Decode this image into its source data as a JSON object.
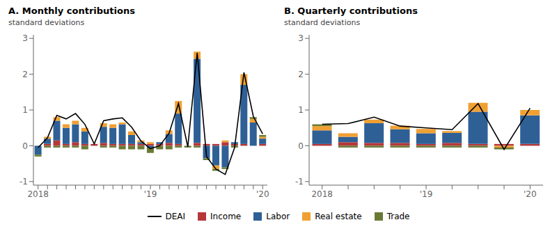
{
  "chart_data": [
    {
      "type": "bar",
      "stacked": true,
      "title": "A. Monthly contributions",
      "ylabel": "standard deviations",
      "legend": "bottom",
      "categories": [
        "2018",
        null,
        null,
        null,
        null,
        null,
        null,
        null,
        null,
        null,
        null,
        null,
        "'19",
        null,
        null,
        null,
        null,
        null,
        null,
        null,
        null,
        null,
        null,
        null,
        "'20"
      ],
      "ylim": [
        -1.1,
        3.1
      ],
      "yticks": [
        -1,
        0,
        1,
        2,
        3
      ],
      "series": [
        {
          "name": "DEAI",
          "type": "line",
          "color": "#000000",
          "values": [
            -0.05,
            0.22,
            0.85,
            0.75,
            0.9,
            0.6,
            0.05,
            0.7,
            0.75,
            0.78,
            0.52,
            0.13,
            -0.08,
            0.0,
            0.35,
            1.18,
            -0.03,
            2.6,
            -0.3,
            -0.65,
            -0.8,
            -0.05,
            2.05,
            0.82,
            0.33
          ]
        },
        {
          "name": "Income",
          "type": "bar",
          "color": "#b5373a",
          "values": [
            0.0,
            0.05,
            0.15,
            0.05,
            0.1,
            0.05,
            0.05,
            0.08,
            0.05,
            0.05,
            0.05,
            0.05,
            0.05,
            0.05,
            0.08,
            0.05,
            0.0,
            0.08,
            0.05,
            0.05,
            0.1,
            0.05,
            0.05,
            0.0,
            0.05
          ]
        },
        {
          "name": "Labor",
          "type": "bar",
          "color": "#2e6096",
          "values": [
            -0.25,
            0.15,
            0.55,
            0.45,
            0.5,
            0.35,
            0.0,
            0.45,
            0.45,
            0.55,
            0.25,
            0.05,
            -0.05,
            0.05,
            0.25,
            0.85,
            0.0,
            2.35,
            -0.35,
            -0.55,
            -0.6,
            0.05,
            1.65,
            0.65,
            0.15
          ]
        },
        {
          "name": "Real estate",
          "type": "bar",
          "color": "#f0a033",
          "values": [
            0.0,
            0.05,
            0.1,
            0.1,
            0.1,
            0.1,
            0.0,
            0.1,
            0.1,
            0.05,
            0.1,
            0.05,
            0.05,
            0.0,
            0.1,
            0.35,
            0.0,
            0.2,
            0.0,
            -0.1,
            0.05,
            0.0,
            0.3,
            0.1,
            0.05
          ]
        },
        {
          "name": "Trade",
          "type": "bar",
          "color": "#6a7a35",
          "values": [
            -0.05,
            -0.05,
            -0.05,
            -0.05,
            -0.05,
            -0.1,
            0.0,
            -0.05,
            -0.05,
            -0.1,
            -0.1,
            -0.1,
            -0.15,
            -0.1,
            -0.1,
            -0.05,
            -0.05,
            -0.05,
            -0.05,
            -0.05,
            -0.05,
            -0.05,
            0.0,
            0.05,
            0.05
          ]
        }
      ]
    },
    {
      "type": "bar",
      "stacked": true,
      "title": "B. Quarterly contributions",
      "ylabel": "standard deviations",
      "legend": "bottom",
      "categories": [
        "2018",
        null,
        null,
        null,
        "'19",
        null,
        null,
        null,
        "'20"
      ],
      "ylim": [
        -1.1,
        3.1
      ],
      "yticks": [
        -1,
        0,
        1,
        2,
        3
      ],
      "series": [
        {
          "name": "DEAI",
          "type": "line",
          "color": "#000000",
          "values": [
            0.6,
            0.62,
            0.8,
            0.55,
            0.5,
            0.45,
            1.18,
            -0.1,
            1.05
          ]
        },
        {
          "name": "Income",
          "type": "bar",
          "color": "#b5373a",
          "values": [
            0.05,
            0.1,
            0.08,
            0.08,
            0.05,
            0.08,
            0.05,
            0.05,
            0.05
          ]
        },
        {
          "name": "Labor",
          "type": "bar",
          "color": "#2e6096",
          "values": [
            0.38,
            0.15,
            0.55,
            0.38,
            0.3,
            0.28,
            0.9,
            0.0,
            0.8
          ]
        },
        {
          "name": "Real estate",
          "type": "bar",
          "color": "#f0a033",
          "values": [
            0.12,
            0.1,
            0.1,
            0.1,
            0.12,
            0.05,
            0.25,
            -0.05,
            0.15
          ]
        },
        {
          "name": "Trade",
          "type": "bar",
          "color": "#6a7a35",
          "values": [
            0.05,
            -0.05,
            -0.05,
            -0.05,
            -0.05,
            -0.05,
            -0.05,
            -0.05,
            0.0
          ]
        }
      ]
    }
  ]
}
